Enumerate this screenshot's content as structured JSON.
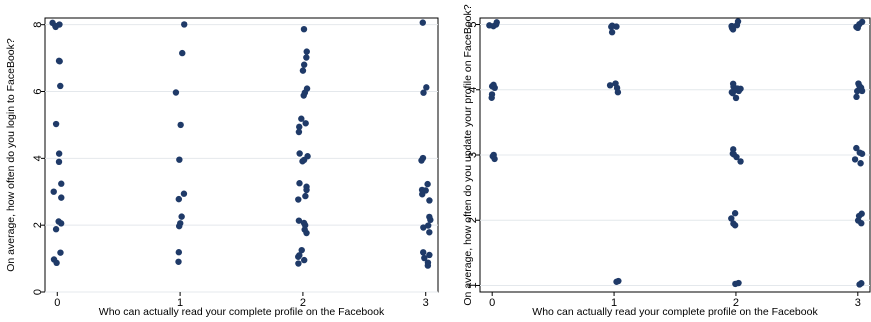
{
  "colors": {
    "background": "#ffffff",
    "plot_background": "#ffffff",
    "marker": "#1f3a68",
    "grid": "#e4e8ec",
    "axis": "#000000"
  },
  "chart_data": [
    {
      "type": "scatter",
      "title": "",
      "xlabel": "Who can actually read your complete profile on the Facebook",
      "ylabel": "On average, how often do you login to FaceBook?",
      "xlim": [
        -0.1,
        3.1
      ],
      "ylim": [
        0,
        8.2
      ],
      "xticks": [
        "0",
        "1",
        "2",
        "3"
      ],
      "yticks": [
        "0",
        "2",
        "4",
        "6",
        "8"
      ],
      "grid": true,
      "legend": "none",
      "points": [
        {
          "x": 0,
          "y": 8
        },
        {
          "x": 0,
          "y": 8
        },
        {
          "x": 0,
          "y": 8
        },
        {
          "x": 0,
          "y": 7.9
        },
        {
          "x": 0,
          "y": 6.9
        },
        {
          "x": 0,
          "y": 6.9
        },
        {
          "x": 0,
          "y": 6.2
        },
        {
          "x": 0,
          "y": 5
        },
        {
          "x": 0,
          "y": 4.2
        },
        {
          "x": 0,
          "y": 3.9
        },
        {
          "x": 0,
          "y": 3.2
        },
        {
          "x": 0,
          "y": 3
        },
        {
          "x": 0,
          "y": 2.8
        },
        {
          "x": 0,
          "y": 2.1
        },
        {
          "x": 0,
          "y": 2
        },
        {
          "x": 0,
          "y": 1.9
        },
        {
          "x": 0,
          "y": 1.2
        },
        {
          "x": 0,
          "y": 1
        },
        {
          "x": 0,
          "y": 0.9
        },
        {
          "x": 1,
          "y": 8
        },
        {
          "x": 1,
          "y": 7.1
        },
        {
          "x": 1,
          "y": 6
        },
        {
          "x": 1,
          "y": 5
        },
        {
          "x": 1,
          "y": 4
        },
        {
          "x": 1,
          "y": 3
        },
        {
          "x": 1,
          "y": 2.8
        },
        {
          "x": 1,
          "y": 2.2
        },
        {
          "x": 1,
          "y": 2.1
        },
        {
          "x": 1,
          "y": 2
        },
        {
          "x": 1,
          "y": 1.2
        },
        {
          "x": 1,
          "y": 0.9
        },
        {
          "x": 2,
          "y": 7.9
        },
        {
          "x": 2,
          "y": 7.2
        },
        {
          "x": 2,
          "y": 7
        },
        {
          "x": 2,
          "y": 6.8
        },
        {
          "x": 2,
          "y": 6.6
        },
        {
          "x": 2,
          "y": 6.1
        },
        {
          "x": 2,
          "y": 6
        },
        {
          "x": 2,
          "y": 5.9
        },
        {
          "x": 2,
          "y": 5.2
        },
        {
          "x": 2,
          "y": 5
        },
        {
          "x": 2,
          "y": 4.9
        },
        {
          "x": 2,
          "y": 4.8
        },
        {
          "x": 2,
          "y": 4.2
        },
        {
          "x": 2,
          "y": 4.1
        },
        {
          "x": 2,
          "y": 4
        },
        {
          "x": 2,
          "y": 3.9
        },
        {
          "x": 2,
          "y": 3.2
        },
        {
          "x": 2,
          "y": 3.1
        },
        {
          "x": 2,
          "y": 3
        },
        {
          "x": 2,
          "y": 2.9
        },
        {
          "x": 2,
          "y": 2.8
        },
        {
          "x": 2,
          "y": 2.2
        },
        {
          "x": 2,
          "y": 2.1
        },
        {
          "x": 2,
          "y": 2
        },
        {
          "x": 2,
          "y": 1.9
        },
        {
          "x": 2,
          "y": 1.8
        },
        {
          "x": 2,
          "y": 1.2
        },
        {
          "x": 2,
          "y": 1.1
        },
        {
          "x": 2,
          "y": 1
        },
        {
          "x": 2,
          "y": 0.9
        },
        {
          "x": 2,
          "y": 0.8
        },
        {
          "x": 3,
          "y": 8
        },
        {
          "x": 3,
          "y": 6.1
        },
        {
          "x": 3,
          "y": 6
        },
        {
          "x": 3,
          "y": 4
        },
        {
          "x": 3,
          "y": 3.9
        },
        {
          "x": 3,
          "y": 3.2
        },
        {
          "x": 3,
          "y": 3.1
        },
        {
          "x": 3,
          "y": 3
        },
        {
          "x": 3,
          "y": 2.9
        },
        {
          "x": 3,
          "y": 2.8
        },
        {
          "x": 3,
          "y": 2.2
        },
        {
          "x": 3,
          "y": 2.1
        },
        {
          "x": 3,
          "y": 2
        },
        {
          "x": 3,
          "y": 1.9
        },
        {
          "x": 3,
          "y": 1.8
        },
        {
          "x": 3,
          "y": 1.2
        },
        {
          "x": 3,
          "y": 1.1
        },
        {
          "x": 3,
          "y": 1
        },
        {
          "x": 3,
          "y": 0.9
        },
        {
          "x": 3,
          "y": 0.8
        }
      ]
    },
    {
      "type": "scatter",
      "title": "",
      "xlabel": "Who can actually read your complete profile on the Facebook",
      "ylabel": "On average, how often do you update your profile on FaceBook?",
      "xlim": [
        -0.1,
        3.1
      ],
      "ylim": [
        0.9,
        5.1
      ],
      "xticks": [
        "0",
        "1",
        "2",
        "3"
      ],
      "yticks": [
        "1",
        "2",
        "3",
        "4",
        "5"
      ],
      "grid": true,
      "legend": "none",
      "points": [
        {
          "x": 0,
          "y": 5
        },
        {
          "x": 0,
          "y": 5
        },
        {
          "x": 0,
          "y": 4.95
        },
        {
          "x": 0,
          "y": 5.02
        },
        {
          "x": 0,
          "y": 4.1
        },
        {
          "x": 0,
          "y": 4.05
        },
        {
          "x": 0,
          "y": 4
        },
        {
          "x": 0,
          "y": 3.95
        },
        {
          "x": 0,
          "y": 3.9
        },
        {
          "x": 0,
          "y": 3
        },
        {
          "x": 0,
          "y": 2.98
        },
        {
          "x": 0,
          "y": 2.95
        },
        {
          "x": 1,
          "y": 5
        },
        {
          "x": 1,
          "y": 4.98
        },
        {
          "x": 1,
          "y": 4.95
        },
        {
          "x": 1,
          "y": 4.9
        },
        {
          "x": 1,
          "y": 4.1
        },
        {
          "x": 1,
          "y": 4.05
        },
        {
          "x": 1,
          "y": 4
        },
        {
          "x": 1,
          "y": 3.95
        },
        {
          "x": 1,
          "y": 1.1
        },
        {
          "x": 1,
          "y": 1.05
        },
        {
          "x": 2,
          "y": 5.02
        },
        {
          "x": 2,
          "y": 5
        },
        {
          "x": 2,
          "y": 5
        },
        {
          "x": 2,
          "y": 4.98
        },
        {
          "x": 2,
          "y": 4.96
        },
        {
          "x": 2,
          "y": 4.95
        },
        {
          "x": 2,
          "y": 4.08
        },
        {
          "x": 2,
          "y": 4.05
        },
        {
          "x": 2,
          "y": 4.02
        },
        {
          "x": 2,
          "y": 4
        },
        {
          "x": 2,
          "y": 4
        },
        {
          "x": 2,
          "y": 3.98
        },
        {
          "x": 2,
          "y": 3.95
        },
        {
          "x": 2,
          "y": 3.92
        },
        {
          "x": 2,
          "y": 3.9
        },
        {
          "x": 2,
          "y": 3.08
        },
        {
          "x": 2,
          "y": 3.05
        },
        {
          "x": 2,
          "y": 3
        },
        {
          "x": 2,
          "y": 2.97
        },
        {
          "x": 2,
          "y": 2.93
        },
        {
          "x": 2,
          "y": 2.12
        },
        {
          "x": 2,
          "y": 2.06
        },
        {
          "x": 2,
          "y": 1.95
        },
        {
          "x": 2,
          "y": 1.92
        },
        {
          "x": 2,
          "y": 1.02
        },
        {
          "x": 2,
          "y": 1
        },
        {
          "x": 3,
          "y": 5.02
        },
        {
          "x": 3,
          "y": 5
        },
        {
          "x": 3,
          "y": 4.97
        },
        {
          "x": 3,
          "y": 4.95
        },
        {
          "x": 3,
          "y": 4.08
        },
        {
          "x": 3,
          "y": 4.05
        },
        {
          "x": 3,
          "y": 4.02
        },
        {
          "x": 3,
          "y": 4
        },
        {
          "x": 3,
          "y": 3.98
        },
        {
          "x": 3,
          "y": 3.95
        },
        {
          "x": 3,
          "y": 3.92
        },
        {
          "x": 3,
          "y": 3.08
        },
        {
          "x": 3,
          "y": 3.02
        },
        {
          "x": 3,
          "y": 3
        },
        {
          "x": 3,
          "y": 2.95
        },
        {
          "x": 3,
          "y": 2.9
        },
        {
          "x": 3,
          "y": 2.08
        },
        {
          "x": 3,
          "y": 2.05
        },
        {
          "x": 3,
          "y": 2
        },
        {
          "x": 3,
          "y": 1.95
        },
        {
          "x": 3,
          "y": 1.05
        },
        {
          "x": 3,
          "y": 1.02
        }
      ]
    }
  ]
}
